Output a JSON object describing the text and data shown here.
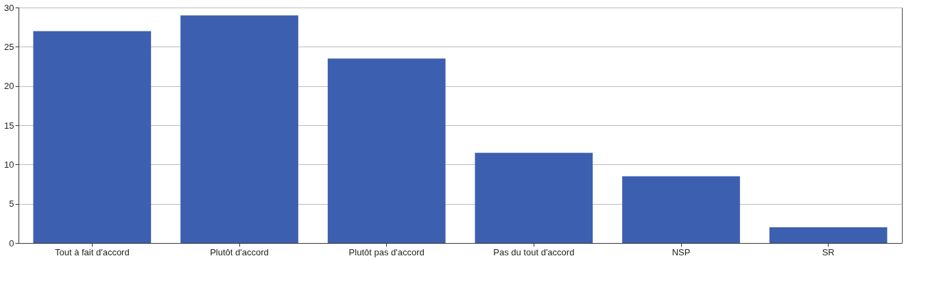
{
  "chart_data": {
    "type": "bar",
    "categories": [
      "Tout à fait d'accord",
      "Plutôt d'accord",
      "Plutôt pas d'accord",
      "Pas du tout d'accord",
      "NSP",
      "SR"
    ],
    "values": [
      27,
      29,
      23.5,
      11.5,
      8.5,
      2
    ],
    "color": "#3d5fb0",
    "ylim": [
      0,
      30
    ],
    "yticks": [
      0,
      5,
      10,
      15,
      20,
      25,
      30
    ],
    "grid": "y"
  }
}
